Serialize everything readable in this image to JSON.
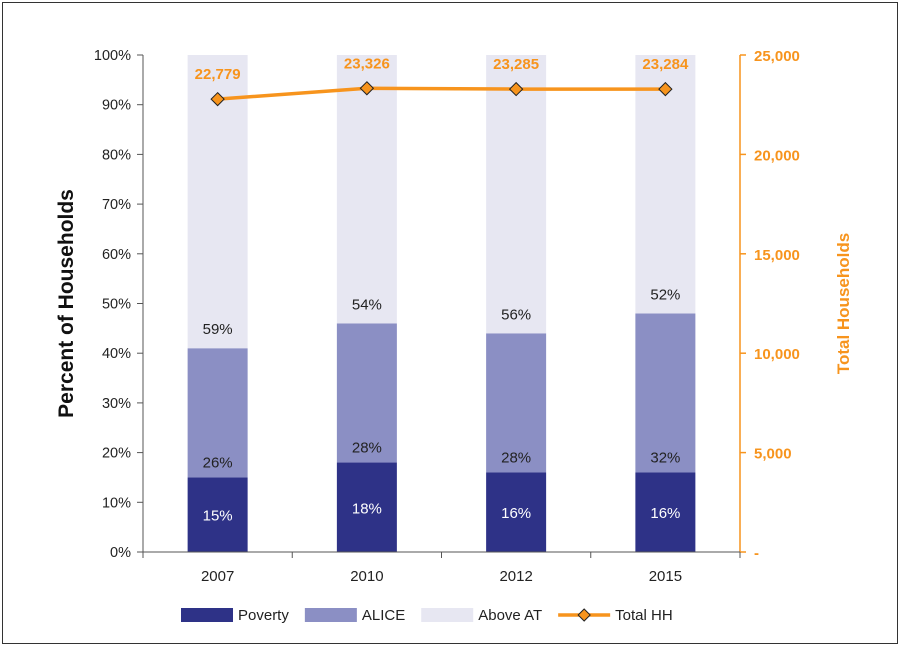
{
  "chart_data": {
    "type": "bar",
    "stacked": true,
    "categories": [
      "2007",
      "2010",
      "2012",
      "2015"
    ],
    "series": [
      {
        "name": "Poverty",
        "values": [
          15,
          18,
          16,
          16
        ],
        "labels": [
          "15%",
          "18%",
          "16%",
          "16%"
        ],
        "color": "#2e3287"
      },
      {
        "name": "ALICE",
        "values": [
          26,
          28,
          28,
          32
        ],
        "labels": [
          "26%",
          "28%",
          "28%",
          "32%"
        ],
        "color": "#8b8fc4"
      },
      {
        "name": "Above AT",
        "values": [
          59,
          54,
          56,
          52
        ],
        "labels": [
          "59%",
          "54%",
          "56%",
          "52%"
        ],
        "color": "#e7e7f2"
      }
    ],
    "line_series": {
      "name": "Total HH",
      "axis": "right",
      "values": [
        22779,
        23326,
        23285,
        23284
      ],
      "labels": [
        "22,779",
        "23,326",
        "23,285",
        "23,284"
      ],
      "color": "#f7941d",
      "marker": "diamond"
    },
    "ylabel": "Percent of Households",
    "y2label": "Total Households",
    "ylim": [
      0,
      100
    ],
    "y2lim": [
      0,
      25000
    ],
    "yticks": [
      "0%",
      "10%",
      "20%",
      "30%",
      "40%",
      "50%",
      "60%",
      "70%",
      "80%",
      "90%",
      "100%"
    ],
    "y2ticks": [
      "-",
      "5,000",
      "10,000",
      "15,000",
      "20,000",
      "25,000"
    ],
    "legend": [
      "Poverty",
      "ALICE",
      "Above AT",
      "Total HH"
    ],
    "legend_position": "bottom",
    "grid": false
  }
}
